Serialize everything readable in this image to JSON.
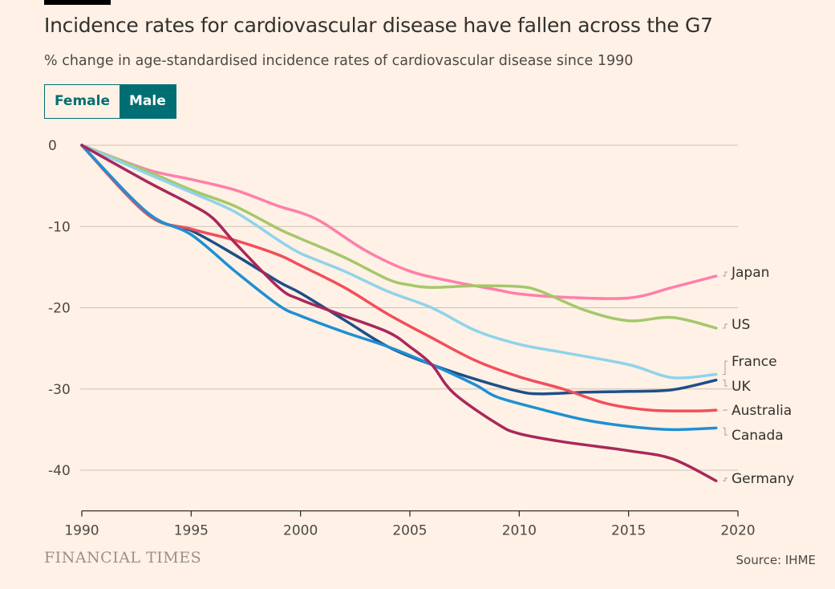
{
  "header": {
    "title": "Incidence rates for cardiovascular disease have fallen across the G7",
    "subtitle": "% change in age-standardised incidence rates of cardiovascular disease since 1990"
  },
  "toggle": {
    "options": [
      "Female",
      "Male"
    ],
    "selected": "Male",
    "accent": "#006f73"
  },
  "footer": {
    "brand": "FINANCIAL TIMES",
    "source": "Source: IHME"
  },
  "chart_data": {
    "type": "line",
    "title": "Incidence rates for cardiovascular disease have fallen across the G7",
    "ylabel": "% change in age-standardised incidence rates of cardiovascular disease since 1990",
    "xlim": [
      1990,
      2020
    ],
    "ylim": [
      -45,
      0
    ],
    "xticks": [
      1990,
      1995,
      2000,
      2005,
      2010,
      2015,
      2020
    ],
    "yticks": [
      0,
      -10,
      -20,
      -30,
      -40
    ],
    "grid": true,
    "legend": "direct-labels-right",
    "series": [
      {
        "name": "Japan",
        "color": "#ff7faa",
        "points": [
          [
            1990,
            0
          ],
          [
            1993,
            -3
          ],
          [
            1995,
            -4.2
          ],
          [
            1997,
            -5.5
          ],
          [
            1999,
            -7.5
          ],
          [
            2000,
            -8.3
          ],
          [
            2001,
            -9.5
          ],
          [
            2003,
            -13
          ],
          [
            2005,
            -15.5
          ],
          [
            2007,
            -16.8
          ],
          [
            2009,
            -17.8
          ],
          [
            2010,
            -18.3
          ],
          [
            2012,
            -18.7
          ],
          [
            2015,
            -18.8
          ],
          [
            2017,
            -17.5
          ],
          [
            2019,
            -16.1
          ]
        ]
      },
      {
        "name": "US",
        "color": "#a5c76a",
        "points": [
          [
            1990,
            0
          ],
          [
            1993,
            -3.2
          ],
          [
            1995,
            -5.5
          ],
          [
            1997,
            -7.5
          ],
          [
            1999,
            -10.3
          ],
          [
            2000,
            -11.5
          ],
          [
            2002,
            -13.8
          ],
          [
            2004,
            -16.5
          ],
          [
            2005,
            -17.2
          ],
          [
            2006,
            -17.5
          ],
          [
            2008,
            -17.3
          ],
          [
            2010,
            -17.4
          ],
          [
            2011,
            -18
          ],
          [
            2013,
            -20.3
          ],
          [
            2015,
            -21.6
          ],
          [
            2017,
            -21.2
          ],
          [
            2019,
            -22.5
          ]
        ]
      },
      {
        "name": "France",
        "color": "#8fd3ea",
        "points": [
          [
            1990,
            0
          ],
          [
            1993,
            -3.5
          ],
          [
            1995,
            -5.8
          ],
          [
            1997,
            -8.2
          ],
          [
            1999,
            -11.7
          ],
          [
            2000,
            -13.3
          ],
          [
            2002,
            -15.5
          ],
          [
            2004,
            -18
          ],
          [
            2006,
            -20
          ],
          [
            2008,
            -22.8
          ],
          [
            2010,
            -24.5
          ],
          [
            2012,
            -25.5
          ],
          [
            2015,
            -27
          ],
          [
            2017,
            -28.6
          ],
          [
            2019,
            -28.2
          ]
        ]
      },
      {
        "name": "UK",
        "color": "#1f4e87",
        "points": [
          [
            1990,
            0
          ],
          [
            1993,
            -8.5
          ],
          [
            1995,
            -10.5
          ],
          [
            1997,
            -13.5
          ],
          [
            1999,
            -16.8
          ],
          [
            2000,
            -18.2
          ],
          [
            2002,
            -21.5
          ],
          [
            2004,
            -24.8
          ],
          [
            2006,
            -27
          ],
          [
            2008,
            -28.8
          ],
          [
            2010,
            -30.3
          ],
          [
            2011,
            -30.6
          ],
          [
            2013,
            -30.4
          ],
          [
            2015,
            -30.3
          ],
          [
            2017,
            -30.1
          ],
          [
            2019,
            -28.9
          ]
        ]
      },
      {
        "name": "Australia",
        "color": "#f24e5b",
        "points": [
          [
            1990,
            0
          ],
          [
            1993,
            -8.5
          ],
          [
            1995,
            -10.3
          ],
          [
            1997,
            -11.7
          ],
          [
            1999,
            -13.5
          ],
          [
            2000,
            -14.8
          ],
          [
            2002,
            -17.5
          ],
          [
            2004,
            -20.8
          ],
          [
            2006,
            -23.7
          ],
          [
            2008,
            -26.5
          ],
          [
            2010,
            -28.5
          ],
          [
            2012,
            -30
          ],
          [
            2014,
            -31.8
          ],
          [
            2016,
            -32.6
          ],
          [
            2018,
            -32.7
          ],
          [
            2019,
            -32.6
          ]
        ]
      },
      {
        "name": "Canada",
        "color": "#1f8fd2",
        "points": [
          [
            1990,
            0
          ],
          [
            1993,
            -8.3
          ],
          [
            1995,
            -11
          ],
          [
            1997,
            -15.5
          ],
          [
            1999,
            -19.7
          ],
          [
            2000,
            -21
          ],
          [
            2002,
            -23
          ],
          [
            2004,
            -24.8
          ],
          [
            2006,
            -27
          ],
          [
            2008,
            -29.5
          ],
          [
            2009,
            -31
          ],
          [
            2011,
            -32.5
          ],
          [
            2013,
            -33.8
          ],
          [
            2015,
            -34.6
          ],
          [
            2017,
            -35
          ],
          [
            2019,
            -34.8
          ]
        ]
      },
      {
        "name": "Germany",
        "color": "#a8285a",
        "points": [
          [
            1990,
            0
          ],
          [
            1993,
            -4.5
          ],
          [
            1995,
            -7.3
          ],
          [
            1996,
            -9
          ],
          [
            1997,
            -12
          ],
          [
            1999,
            -17.5
          ],
          [
            2000,
            -19
          ],
          [
            2002,
            -21
          ],
          [
            2004,
            -23
          ],
          [
            2005,
            -24.8
          ],
          [
            2006,
            -27
          ],
          [
            2007,
            -30.5
          ],
          [
            2009,
            -34.3
          ],
          [
            2010,
            -35.5
          ],
          [
            2012,
            -36.5
          ],
          [
            2015,
            -37.6
          ],
          [
            2017,
            -38.6
          ],
          [
            2019,
            -41.3
          ]
        ]
      }
    ]
  }
}
